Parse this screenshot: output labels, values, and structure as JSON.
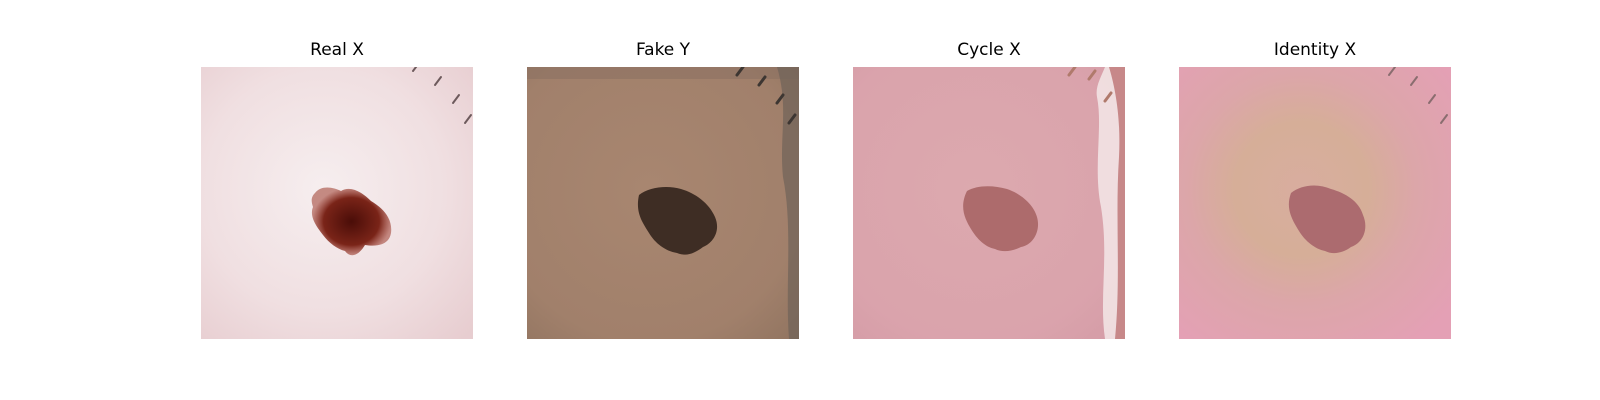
{
  "figure": {
    "panels": [
      {
        "title": "Real X",
        "kind": "real",
        "bg": "#f1e1e3",
        "lesion": "#6a1e14"
      },
      {
        "title": "Fake Y",
        "kind": "fake",
        "bg": "#a6846e",
        "lesion": "#3e2d24"
      },
      {
        "title": "Cycle X",
        "kind": "cycle",
        "bg": "#dca6ae",
        "lesion": "#ad6b6c"
      },
      {
        "title": "Identity X",
        "kind": "identity",
        "bg": "#e0a2b1",
        "lesion": "#ac6b6f"
      }
    ]
  }
}
